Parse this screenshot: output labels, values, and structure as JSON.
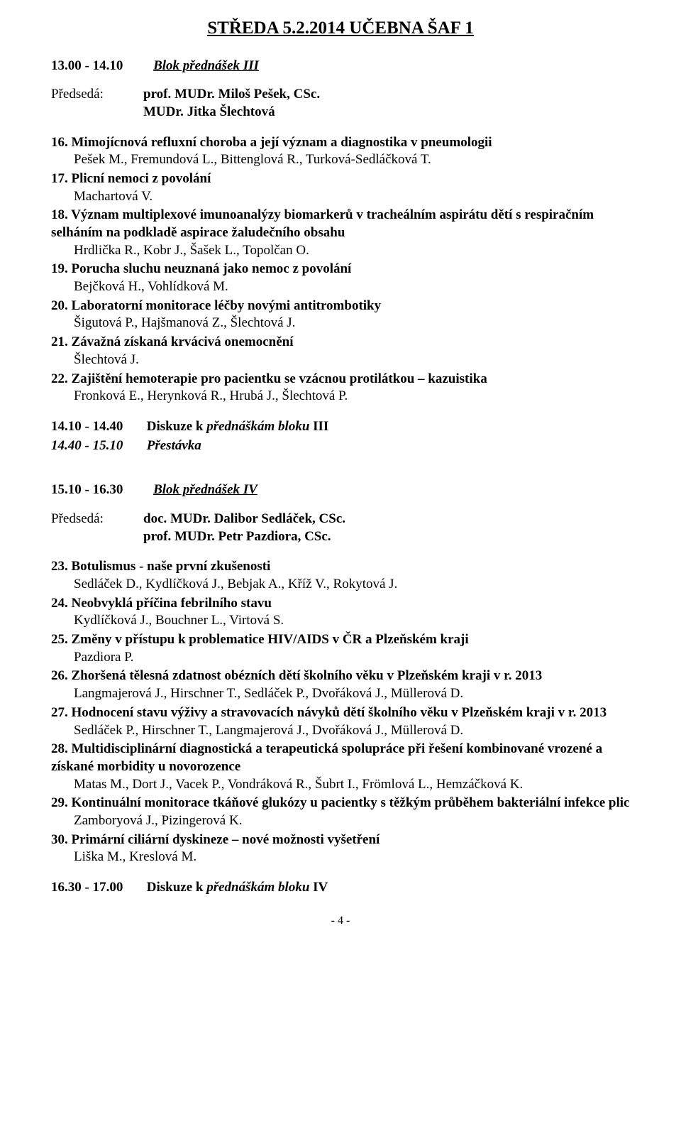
{
  "page_title": "STŘEDA 5.2.2014  UČEBNA ŠAF 1",
  "block3": {
    "time": "13.00 - 14.10",
    "name": "Blok přednášek III",
    "chair_label": "Předsedá:",
    "chairs": [
      "prof. MUDr. Miloš Pešek, CSc.",
      "MUDr. Jitka Šlechtová"
    ],
    "items": [
      {
        "n": "16.",
        "title": "Mimojícnová refluxní choroba a její význam a diagnostika v pneumologii",
        "authors": "Pešek M., Fremundová L., Bittenglová R., Turková-Sedláčková T."
      },
      {
        "n": "17.",
        "title": "Plicní nemoci z povolání",
        "authors": "Machartová V."
      },
      {
        "n": "18.",
        "title": "Význam multiplexové imunoanalýzy biomarkerů v tracheálním aspirátu  dětí s respiračním selháním na podkladě aspirace žaludečního obsahu",
        "authors": "Hrdlička R., Kobr J., Šašek L., Topolčan O."
      },
      {
        "n": "19.",
        "title": "Porucha sluchu neuznaná jako nemoc z povolání",
        "authors": "Bejčková H., Vohlídková M."
      },
      {
        "n": "20.",
        "title": "Laboratorní monitorace léčby novými antitrombotiky",
        "authors": "Šigutová P., Hajšmanová Z., Šlechtová J."
      },
      {
        "n": "21.",
        "title": "Závažná získaná krvácivá onemocnění",
        "authors": "Šlechtová J."
      },
      {
        "n": "22.",
        "title": "Zajištění hemoterapie pro pacientku se vzácnou protilátkou – kazuistika",
        "authors": "Fronková E., Herynková R., Hrubá J., Šlechtová P."
      }
    ],
    "after": [
      {
        "t": "14.10 - 14.40",
        "d_pre": "Diskuze k ",
        "d_it": "přednáškám bloku",
        "d_post": " III",
        "italic_whole": false
      },
      {
        "t": "14.40 - 15.10",
        "d": "Přestávka",
        "italic_whole": true
      }
    ]
  },
  "block4": {
    "time": "15.10 - 16.30",
    "name": "Blok přednášek IV",
    "chair_label": "Předsedá:",
    "chairs": [
      "doc. MUDr. Dalibor Sedláček, CSc.",
      "prof. MUDr. Petr Pazdiora, CSc."
    ],
    "items": [
      {
        "n": "23.",
        "title": "Botulismus - naše první zkušenosti",
        "authors": "Sedláček D., Kydlíčková J., Bebjak A., Kříž V., Rokytová J."
      },
      {
        "n": "24.",
        "title": "Neobvyklá příčina febrilního stavu",
        "authors": "Kydlíčková J., Bouchner L., Virtová S."
      },
      {
        "n": "25.",
        "title": "Změny v přístupu k problematice HIV/AIDS v ČR a Plzeňském kraji",
        "authors": "Pazdiora P."
      },
      {
        "n": "26.",
        "title": "Zhoršená tělesná zdatnost obézních dětí školního věku v Plzeňském kraji v r. 2013",
        "authors": "Langmajerová J., Hirschner T., Sedláček P., Dvořáková J., Müllerová D."
      },
      {
        "n": "27.",
        "title": "Hodnocení stavu výživy a stravovacích návyků dětí školního věku v Plzeňském kraji v r. 2013",
        "authors": "Sedláček P., Hirschner T., Langmajerová J., Dvořáková J., Müllerová D."
      },
      {
        "n": "28.",
        "title": "Multidisciplinární diagnostická a terapeutická spolupráce při řešení kombinované vrozené a  získané morbidity u novorozence",
        "authors": "Matas M., Dort J., Vacek P., Vondráková R., Šubrt I., Frömlová L., Hemzáčková K."
      },
      {
        "n": "29.",
        "title": "Kontinuální monitorace tkáňové glukózy u pacientky s těžkým průběhem bakteriální infekce plic",
        "authors": "Zamboryová J., Pizingerová K."
      },
      {
        "n": "30.",
        "title": "Primární ciliární dyskineze – nové možnosti vyšetření",
        "authors": "Liška M., Kreslová M."
      }
    ],
    "after": [
      {
        "t": "16.30 - 17.00",
        "d_pre": "Diskuze k ",
        "d_it": "přednáškám bloku",
        "d_post": " IV",
        "italic_whole": false
      }
    ]
  },
  "footer": "- 4 -"
}
